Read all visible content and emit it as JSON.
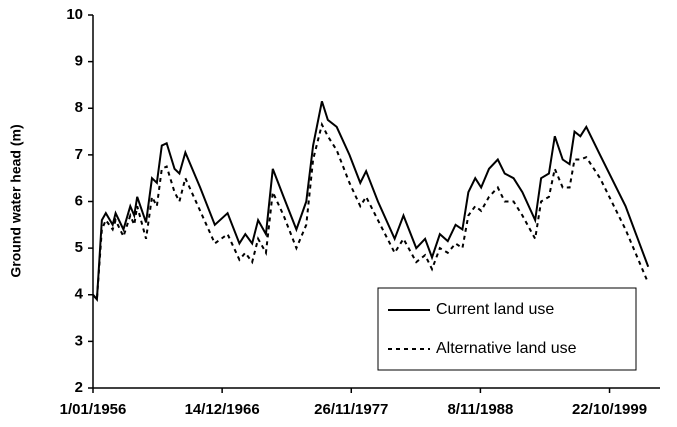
{
  "chart_data": {
    "type": "line",
    "ylabel": "Ground water head (m)",
    "x": [
      "1/01/1956",
      "1/05/1956",
      "1/10/1956",
      "1/02/1957",
      "1/09/1957",
      "1/12/1957",
      "1/08/1958",
      "1/03/1959",
      "1/07/1959",
      "1/10/1959",
      "1/07/1960",
      "1/01/1961",
      "1/06/1961",
      "1/11/1961",
      "1/04/1962",
      "1/12/1962",
      "1/05/1963",
      "1/11/1963",
      "1/02/1965",
      "1/05/1966",
      "1/06/1967",
      "1/06/1968",
      "1/12/1968",
      "1/07/1969",
      "1/01/1970",
      "1/09/1970",
      "1/04/1971",
      "1/03/1972",
      "1/04/1973",
      "1/02/1974",
      "1/09/1974",
      "1/06/1975",
      "1/12/1975",
      "1/09/1976",
      "1/10/1977",
      "1/09/1978",
      "1/03/1979",
      "1/03/1980",
      "1/08/1981",
      "1/05/1982",
      "1/06/1983",
      "1/03/1984",
      "1/10/1984",
      "1/06/1985",
      "1/02/1986",
      "1/10/1986",
      "1/05/1987",
      "1/11/1987",
      "1/06/1988",
      "1/12/1988",
      "1/08/1989",
      "1/05/1990",
      "1/12/1990",
      "1/09/1991",
      "1/06/1992",
      "1/07/1993",
      "1/01/1994",
      "1/09/1994",
      "1/03/1995",
      "1/11/1995",
      "1/06/1996",
      "1/11/1996",
      "1/05/1997",
      "1/11/1997",
      "1/01/1999",
      "1/03/2001",
      "1/02/2003"
    ],
    "series": [
      {
        "name": "Current land use",
        "color": "#000000",
        "linestyle": "solid",
        "values": [
          4.0,
          3.9,
          5.6,
          5.75,
          5.5,
          5.75,
          5.4,
          5.9,
          5.7,
          6.1,
          5.55,
          6.5,
          6.4,
          7.2,
          7.25,
          6.7,
          6.6,
          7.05,
          6.3,
          5.5,
          5.75,
          5.1,
          5.3,
          5.1,
          5.6,
          5.3,
          6.7,
          6.1,
          5.4,
          6.0,
          7.2,
          8.15,
          7.75,
          7.6,
          7.0,
          6.4,
          6.65,
          6.0,
          5.2,
          5.7,
          5.0,
          5.2,
          4.8,
          5.3,
          5.15,
          5.5,
          5.4,
          6.2,
          6.5,
          6.3,
          6.7,
          6.9,
          6.6,
          6.5,
          6.2,
          5.6,
          6.5,
          6.6,
          7.4,
          6.9,
          6.8,
          7.5,
          7.4,
          7.6,
          7.0,
          5.9,
          4.6
        ]
      },
      {
        "name": "Alternative land use",
        "color": "#000000",
        "linestyle": "dashed",
        "values": [
          4.0,
          3.9,
          5.4,
          5.6,
          5.4,
          5.6,
          5.25,
          5.7,
          5.5,
          5.9,
          5.2,
          6.1,
          5.9,
          6.7,
          6.75,
          6.2,
          6.0,
          6.5,
          5.8,
          5.1,
          5.3,
          4.75,
          4.9,
          4.7,
          5.2,
          4.9,
          6.2,
          5.7,
          5.0,
          5.5,
          6.9,
          7.65,
          7.4,
          7.1,
          6.4,
          5.9,
          6.1,
          5.6,
          4.9,
          5.2,
          4.7,
          4.85,
          4.55,
          5.0,
          4.9,
          5.1,
          5.0,
          5.7,
          5.9,
          5.8,
          6.1,
          6.3,
          6.0,
          6.0,
          5.7,
          5.2,
          6.0,
          6.1,
          6.7,
          6.3,
          6.3,
          6.9,
          6.9,
          6.95,
          6.5,
          5.4,
          4.25
        ]
      }
    ],
    "xlim": [
      "1/01/1956",
      "1/02/2004"
    ],
    "xticks": [
      "1/01/1956",
      "14/12/1966",
      "26/11/1977",
      "8/11/1988",
      "22/10/1999"
    ],
    "ylim": [
      2,
      10
    ],
    "yticks": [
      2,
      3,
      4,
      5,
      6,
      7,
      8,
      9,
      10
    ],
    "grid": false,
    "legend": "lower right"
  }
}
